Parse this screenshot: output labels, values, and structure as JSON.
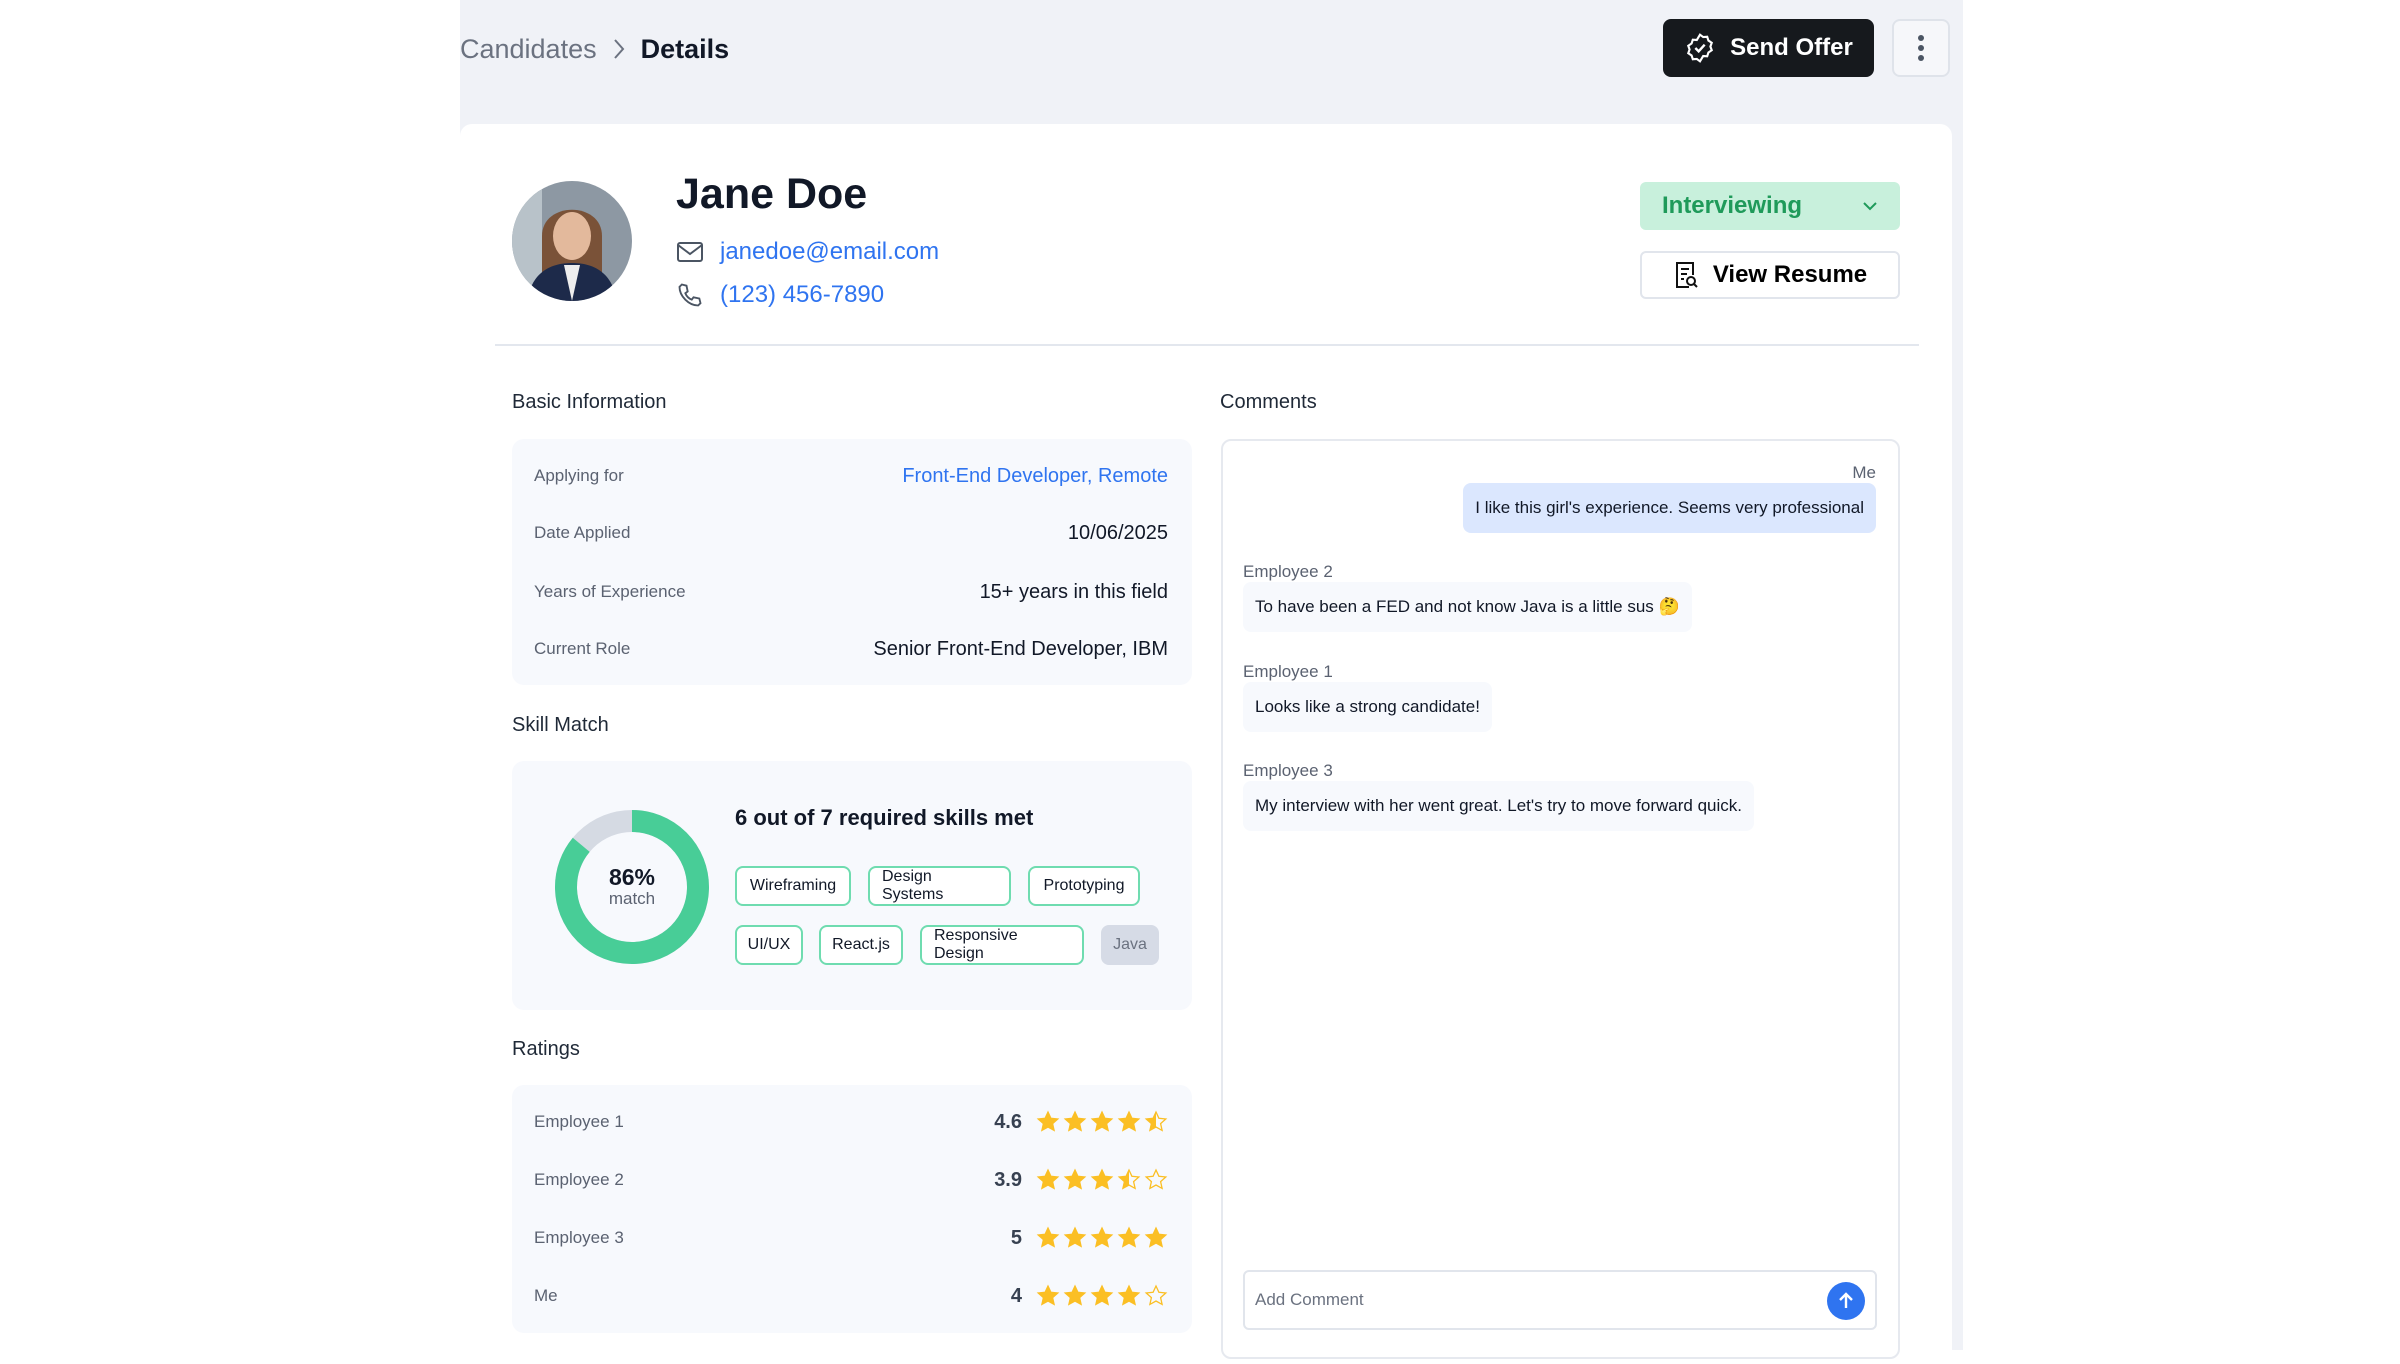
{
  "breadcrumb": {
    "parent": "Candidates",
    "current": "Details"
  },
  "header": {
    "send_offer_label": "Send Offer"
  },
  "candidate": {
    "name": "Jane Doe",
    "email": "janedoe@email.com",
    "phone": "(123) 456-7890",
    "status": "Interviewing",
    "view_resume_label": "View Resume"
  },
  "basic_info": {
    "title": "Basic Information",
    "rows": [
      {
        "label": "Applying for",
        "value": "Front-End Developer, Remote"
      },
      {
        "label": "Date Applied",
        "value": "10/06/2025"
      },
      {
        "label": "Years of Experience",
        "value": "15+ years in this field"
      },
      {
        "label": "Current Role",
        "value": "Senior Front-End Developer, IBM"
      }
    ]
  },
  "skill_match": {
    "title": "Skill Match",
    "percent": 86,
    "percent_label": "86%",
    "match_label": "match",
    "summary": "6 out of 7 required skills met",
    "skills": [
      {
        "name": "Wireframing",
        "met": true
      },
      {
        "name": "Design Systems",
        "met": true
      },
      {
        "name": "Prototyping",
        "met": true
      },
      {
        "name": "UI/UX",
        "met": true
      },
      {
        "name": "React.js",
        "met": true
      },
      {
        "name": "Responsive Design",
        "met": true
      },
      {
        "name": "Java",
        "met": false
      }
    ]
  },
  "ratings": {
    "title": "Ratings",
    "max": 5,
    "rows": [
      {
        "name": "Employee 1",
        "score": "4.6"
      },
      {
        "name": "Employee 2",
        "score": "3.9"
      },
      {
        "name": "Employee 3",
        "score": "5"
      },
      {
        "name": "Me",
        "score": "4"
      }
    ]
  },
  "comments": {
    "title": "Comments",
    "items": [
      {
        "author": "Me",
        "text": "I like this girl's experience. Seems very professional",
        "mine": true
      },
      {
        "author": "Employee 2",
        "text": "To have been a FED and not know Java is a little sus 🤔"
      },
      {
        "author": "Employee 1",
        "text": "Looks like a strong candidate!"
      },
      {
        "author": "Employee 3",
        "text": "My interview with her went great. Let's try to move forward quick."
      }
    ],
    "input_placeholder": "Add Comment"
  },
  "colors": {
    "accent": "#2f74f0",
    "match": "#48cd97",
    "star": "#fbbf24",
    "status_bg": "#c8f0dc",
    "status_text": "#1f9a5a"
  }
}
